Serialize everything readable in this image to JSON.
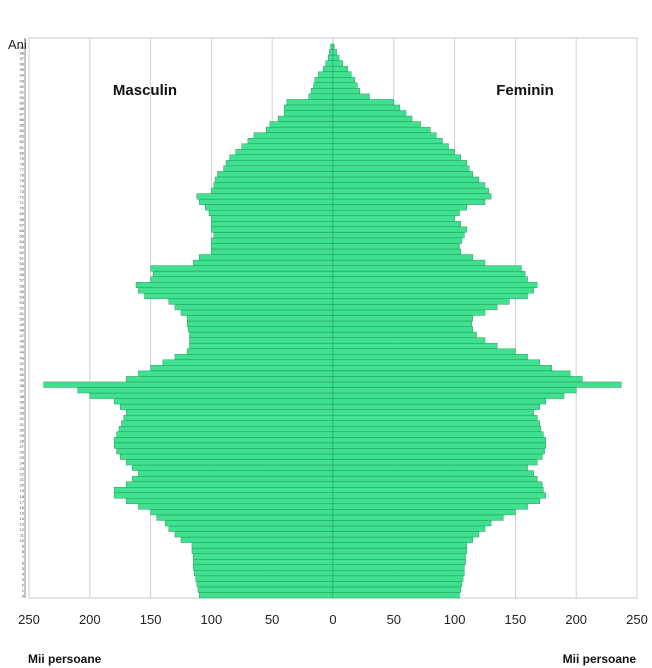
{
  "chart_data": {
    "type": "bar",
    "orientation": "horizontal-population-pyramid",
    "title": "",
    "ylabel": "Ani",
    "xlabel_left": "Mii persoane",
    "xlabel_right": "Mii persoane",
    "side_labels": {
      "left": "Masculin",
      "right": "Feminin"
    },
    "xlim": [
      -250,
      250
    ],
    "x_ticks": [
      -250,
      -200,
      -150,
      -100,
      -50,
      0,
      50,
      100,
      150,
      200,
      250
    ],
    "x_tick_labels": [
      "250",
      "200",
      "150",
      "100",
      "50",
      "0",
      "50",
      "100",
      "150",
      "200",
      "250"
    ],
    "grid": true,
    "bar_color": "#3fe08e",
    "bar_edge_color": "#1a8c54",
    "age_range": [
      0,
      100
    ],
    "series": [
      {
        "name": "Masculin",
        "values": [
          110,
          111,
          112,
          113,
          114,
          115,
          115,
          115,
          116,
          116,
          125,
          130,
          135,
          138,
          145,
          150,
          160,
          170,
          180,
          180,
          170,
          165,
          160,
          165,
          170,
          175,
          178,
          180,
          180,
          178,
          176,
          174,
          172,
          170,
          175,
          180,
          200,
          210,
          238,
          170,
          160,
          150,
          140,
          130,
          120,
          118,
          118,
          118,
          119,
          120,
          120,
          125,
          130,
          135,
          155,
          160,
          162,
          150,
          148,
          150,
          115,
          110,
          100,
          100,
          100,
          98,
          100,
          100,
          100,
          102,
          105,
          110,
          112,
          100,
          98,
          97,
          95,
          90,
          88,
          85,
          80,
          75,
          70,
          65,
          55,
          52,
          45,
          40,
          40,
          38,
          20,
          18,
          16,
          15,
          12,
          8,
          6,
          4,
          3,
          2
        ]
      },
      {
        "name": "Feminin",
        "values": [
          104,
          105,
          106,
          107,
          108,
          108,
          109,
          109,
          110,
          110,
          115,
          120,
          125,
          130,
          140,
          150,
          160,
          170,
          175,
          173,
          172,
          168,
          165,
          160,
          168,
          172,
          174,
          175,
          175,
          173,
          171,
          170,
          168,
          165,
          170,
          175,
          190,
          200,
          237,
          205,
          195,
          180,
          170,
          160,
          150,
          135,
          125,
          118,
          115,
          114,
          115,
          125,
          135,
          145,
          160,
          165,
          168,
          160,
          158,
          155,
          125,
          115,
          105,
          104,
          106,
          108,
          110,
          105,
          100,
          104,
          110,
          125,
          130,
          128,
          125,
          120,
          115,
          112,
          110,
          105,
          100,
          95,
          90,
          85,
          80,
          72,
          65,
          60,
          55,
          50,
          30,
          22,
          20,
          18,
          15,
          12,
          8,
          5,
          3,
          1
        ]
      }
    ]
  }
}
